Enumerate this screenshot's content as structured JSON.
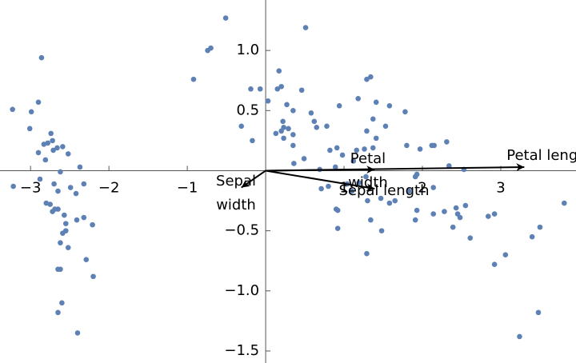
{
  "chart_data": {
    "type": "scatter",
    "x": [
      -3.23,
      -2.86,
      -2.9,
      -2.99,
      -3.01,
      -2.74,
      -2.72,
      -2.83,
      -2.78,
      -2.66,
      -2.9,
      -2.59,
      -2.71,
      -2.52,
      -2.81,
      -2.37,
      -2.62,
      -2.88,
      -3.22,
      -2.7,
      -2.49,
      -2.32,
      -2.65,
      -2.42,
      -2.8,
      -2.75,
      -2.69,
      -2.72,
      -2.65,
      -2.57,
      -2.55,
      -2.41,
      -2.32,
      -2.21,
      -2.55,
      -2.59,
      -2.62,
      -2.52,
      -2.29,
      -2.62,
      -2.65,
      -2.2,
      -2.6,
      -2.65,
      -2.4,
      -0.51,
      -0.74,
      -0.7,
      -0.92,
      -0.31,
      -0.17,
      -0.19,
      -0.07,
      0.03,
      0.51,
      0.17,
      0.15,
      0.2,
      0.46,
      0.27,
      0.35,
      0.22,
      0.23,
      0.29,
      0.2,
      0.13,
      0.35,
      0.23,
      0.35,
      0.49,
      0.36,
      0.58,
      0.62,
      0.65,
      0.78,
      0.94,
      0.82,
      0.91,
      0.98,
      0.89,
      0.69,
      0.71,
      0.8,
      0.92,
      0.9,
      0.92,
      1.18,
      1.29,
      1.34,
      1.41,
      1.58,
      1.37,
      1.53,
      1.29,
      1.41,
      1.37,
      1.26,
      1.16,
      1.12,
      1.28,
      1.1,
      1.19,
      1.04,
      1.3,
      1.58,
      1.65,
      1.47,
      1.34,
      1.48,
      1.29,
      1.78,
      1.8,
      1.97,
      2.12,
      2.15,
      2.31,
      1.83,
      1.91,
      1.93,
      2.14,
      1.91,
      1.93,
      2.28,
      2.14,
      2.34,
      2.53,
      2.43,
      2.45,
      2.55,
      2.39,
      2.48,
      2.61,
      2.84,
      2.92,
      2.92,
      3.06,
      3.24,
      3.4,
      3.5,
      3.48,
      3.81
    ],
    "y": [
      0.51,
      0.94,
      0.57,
      0.49,
      0.35,
      0.31,
      0.25,
      0.22,
      0.23,
      0.19,
      0.15,
      0.2,
      0.17,
      0.14,
      0.09,
      0.03,
      -0.01,
      -0.07,
      -0.13,
      -0.11,
      -0.14,
      -0.11,
      -0.17,
      -0.19,
      -0.27,
      -0.28,
      -0.32,
      -0.34,
      -0.32,
      -0.37,
      -0.44,
      -0.41,
      -0.39,
      -0.45,
      -0.5,
      -0.52,
      -0.6,
      -0.64,
      -0.74,
      -0.82,
      -0.82,
      -0.88,
      -1.1,
      -1.18,
      -1.35,
      1.27,
      1.0,
      1.02,
      0.76,
      0.37,
      0.25,
      0.68,
      0.68,
      0.58,
      1.19,
      0.83,
      0.68,
      0.7,
      0.67,
      0.55,
      0.5,
      0.41,
      0.36,
      0.35,
      0.33,
      0.31,
      0.3,
      0.27,
      0.21,
      0.1,
      0.06,
      0.48,
      0.41,
      0.36,
      0.37,
      0.54,
      0.17,
      0.19,
      0.13,
      0.03,
      0.01,
      -0.15,
      -0.13,
      -0.33,
      -0.32,
      -0.48,
      0.6,
      0.76,
      0.78,
      0.57,
      0.54,
      0.43,
      0.37,
      0.33,
      0.27,
      0.19,
      0.18,
      0.17,
      0.08,
      -0.05,
      -0.17,
      -0.1,
      -0.11,
      -0.25,
      -0.27,
      -0.25,
      -0.23,
      -0.41,
      -0.5,
      -0.69,
      0.49,
      0.21,
      0.18,
      0.21,
      0.21,
      0.24,
      -0.17,
      -0.05,
      -0.03,
      -0.14,
      -0.41,
      -0.33,
      -0.34,
      -0.36,
      0.04,
      0.01,
      -0.31,
      -0.36,
      -0.29,
      -0.47,
      -0.39,
      -0.56,
      -0.38,
      -0.36,
      -0.78,
      -0.7,
      -1.38,
      -0.55,
      -0.47,
      -1.18,
      -0.27
    ],
    "color": "#5e81b5",
    "vectors": [
      {
        "name": "Petal length",
        "x": 3.3,
        "y": 0.03
      },
      {
        "name": "Petal width",
        "x": 1.39,
        "y": 0.01
      },
      {
        "name": "Sepal length",
        "x": 1.39,
        "y": -0.15
      },
      {
        "name": "Sepal width",
        "x": -0.31,
        "y": -0.14
      }
    ],
    "xlim": [
      -3.39,
      3.96
    ],
    "ylim": [
      -1.6,
      1.42
    ],
    "xticks": [
      {
        "value": -3,
        "label": "−3"
      },
      {
        "value": -2,
        "label": "−2"
      },
      {
        "value": -1,
        "label": "−1"
      },
      1,
      2,
      3
    ],
    "yticks": [
      {
        "value": -1.5,
        "label": "−1.5"
      },
      {
        "value": -1,
        "label": "−1.0"
      },
      {
        "value": -0.5,
        "label": "−0.5"
      },
      0.5,
      {
        "value": 1,
        "label": "1.0"
      }
    ]
  }
}
